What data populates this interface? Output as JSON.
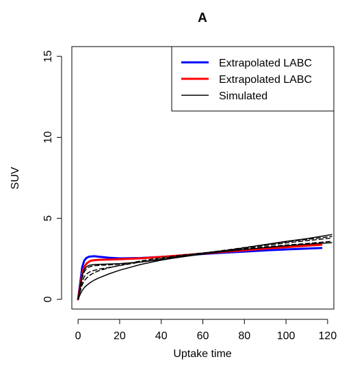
{
  "chart_data": {
    "type": "line",
    "title": "A",
    "xlabel": "Uptake time",
    "ylabel": "SUV",
    "xlim": [
      -3,
      123
    ],
    "ylim": [
      -0.6,
      15.6
    ],
    "xticks": [
      0,
      20,
      40,
      60,
      80,
      100,
      120
    ],
    "yticks": [
      0,
      5,
      10,
      15
    ],
    "grid": false,
    "legend_position": "top-right",
    "legend": [
      {
        "label": "Extrapolated LABC",
        "color": "#0000ff"
      },
      {
        "label": "Extrapolated LABC",
        "color": "#ff0000"
      },
      {
        "label": "Simulated",
        "color": "#000000"
      }
    ],
    "series": [
      {
        "name": "Extrapolated LABC",
        "color": "#0000ff",
        "style": "solid",
        "width": 3,
        "x": [
          0,
          1,
          2,
          3,
          4,
          5,
          6,
          8,
          10,
          15,
          20,
          30,
          40,
          50,
          60,
          70,
          80,
          90,
          100,
          110,
          117
        ],
        "y": [
          0,
          1.0,
          2.0,
          2.4,
          2.55,
          2.62,
          2.65,
          2.66,
          2.63,
          2.57,
          2.53,
          2.55,
          2.62,
          2.7,
          2.8,
          2.88,
          2.95,
          3.02,
          3.08,
          3.13,
          3.17
        ]
      },
      {
        "name": "Extrapolated LABC",
        "color": "#ff0000",
        "style": "solid",
        "width": 3,
        "x": [
          0,
          1,
          2,
          3,
          4,
          5,
          6,
          8,
          10,
          15,
          20,
          30,
          40,
          50,
          60,
          70,
          80,
          90,
          100,
          110,
          117
        ],
        "y": [
          0,
          0.8,
          1.6,
          2.0,
          2.2,
          2.3,
          2.38,
          2.42,
          2.44,
          2.46,
          2.48,
          2.53,
          2.62,
          2.72,
          2.82,
          2.93,
          3.03,
          3.13,
          3.22,
          3.31,
          3.37
        ]
      },
      {
        "color": "#000000",
        "style": "solid",
        "width": 1.5,
        "x": [
          0,
          1,
          2,
          3,
          4,
          5,
          6,
          8,
          10,
          15,
          20,
          30,
          40,
          50,
          60,
          70,
          80,
          90,
          100,
          110,
          122
        ],
        "y": [
          0,
          0.8,
          1.5,
          1.85,
          2.0,
          2.08,
          2.12,
          2.15,
          2.16,
          2.18,
          2.2,
          2.3,
          2.45,
          2.62,
          2.8,
          2.98,
          3.18,
          3.38,
          3.58,
          3.75,
          4.0
        ]
      },
      {
        "color": "#000000",
        "style": "dashed",
        "width": 1.5,
        "x": [
          0,
          1,
          2,
          3,
          4,
          5,
          6,
          8,
          10,
          15,
          20,
          30,
          40,
          50,
          60,
          70,
          80,
          90,
          100,
          110,
          122
        ],
        "y": [
          0,
          0.6,
          1.1,
          1.4,
          1.55,
          1.65,
          1.72,
          1.8,
          1.86,
          1.97,
          2.08,
          2.3,
          2.5,
          2.68,
          2.85,
          3.02,
          3.2,
          3.38,
          3.55,
          3.7,
          3.88
        ]
      },
      {
        "color": "#000000",
        "style": "dashed",
        "width": 1.5,
        "x": [
          0,
          1,
          2,
          3,
          4,
          5,
          6,
          8,
          10,
          15,
          20,
          30,
          40,
          50,
          60,
          70,
          80,
          90,
          100,
          110,
          122
        ],
        "y": [
          0,
          0.7,
          1.35,
          1.7,
          1.88,
          1.97,
          2.03,
          2.08,
          2.1,
          2.13,
          2.17,
          2.3,
          2.47,
          2.65,
          2.82,
          3.0,
          3.17,
          3.33,
          3.48,
          3.62,
          3.78
        ]
      },
      {
        "color": "#000000",
        "style": "dashed",
        "width": 1.5,
        "x": [
          0,
          1,
          2,
          3,
          4,
          5,
          6,
          8,
          10,
          15,
          20,
          30,
          40,
          50,
          60,
          70,
          80,
          90,
          100,
          110,
          122
        ],
        "y": [
          0,
          0.5,
          0.9,
          1.15,
          1.3,
          1.42,
          1.52,
          1.66,
          1.77,
          1.95,
          2.1,
          2.37,
          2.57,
          2.73,
          2.87,
          3.0,
          3.12,
          3.24,
          3.35,
          3.45,
          3.58
        ]
      },
      {
        "color": "#000000",
        "style": "solid",
        "width": 1.5,
        "x": [
          0,
          1,
          2,
          3,
          4,
          5,
          6,
          8,
          10,
          15,
          20,
          30,
          40,
          50,
          60,
          70,
          80,
          90,
          100,
          110,
          122
        ],
        "y": [
          0,
          0.3,
          0.55,
          0.72,
          0.85,
          0.95,
          1.05,
          1.2,
          1.32,
          1.58,
          1.8,
          2.15,
          2.42,
          2.63,
          2.8,
          2.95,
          3.08,
          3.2,
          3.3,
          3.4,
          3.5
        ]
      }
    ]
  }
}
